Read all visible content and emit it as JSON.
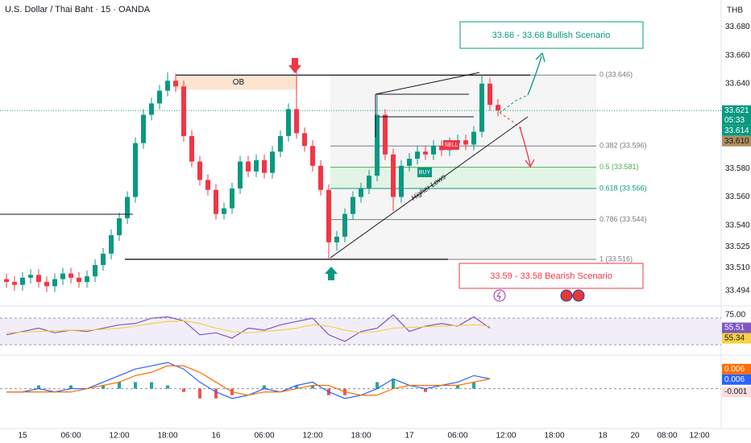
{
  "chart_data": [
    {
      "type": "candlestick",
      "title": "U.S. Dollar / Thai Baht · 15 · OANDA",
      "currency": "THB",
      "x": [
        -2,
        -1,
        0,
        1,
        2,
        3,
        4,
        5,
        6,
        7,
        8,
        9,
        10,
        11,
        12,
        13,
        14,
        15,
        16,
        17,
        18,
        19,
        20,
        21,
        22,
        23,
        24,
        25,
        26,
        27,
        28,
        29,
        30,
        31,
        32,
        33,
        34,
        35,
        36,
        37,
        38,
        39,
        40,
        41,
        42,
        43,
        44,
        45,
        46,
        47,
        48,
        49,
        50,
        51,
        52,
        53,
        54,
        55,
        56,
        57,
        58,
        59
      ],
      "open": [
        33.502,
        33.5,
        33.498,
        33.503,
        33.505,
        33.5,
        33.497,
        33.502,
        33.506,
        33.503,
        33.5,
        33.504,
        33.512,
        33.52,
        33.533,
        33.545,
        33.56,
        33.598,
        33.618,
        33.626,
        33.635,
        33.642,
        33.638,
        33.603,
        33.585,
        33.572,
        33.565,
        33.548,
        33.552,
        33.566,
        33.585,
        33.578,
        33.586,
        33.577,
        33.592,
        33.603,
        33.622,
        33.605,
        33.596,
        33.582,
        33.565,
        33.528,
        33.532,
        33.548,
        33.56,
        33.566,
        33.575,
        33.618,
        33.59,
        33.56,
        33.582,
        33.587,
        33.592,
        33.59,
        33.596,
        33.593,
        33.598,
        33.6,
        33.597,
        33.606,
        33.64,
        33.625
      ],
      "high": [
        33.506,
        33.504,
        33.507,
        33.509,
        33.509,
        33.504,
        33.506,
        33.51,
        33.51,
        33.507,
        33.508,
        33.516,
        33.524,
        33.537,
        33.549,
        33.564,
        33.602,
        33.622,
        33.63,
        33.639,
        33.648,
        33.647,
        33.642,
        33.607,
        33.589,
        33.576,
        33.569,
        33.556,
        33.57,
        33.589,
        33.589,
        33.59,
        33.59,
        33.596,
        33.607,
        33.626,
        33.655,
        33.609,
        33.6,
        33.586,
        33.569,
        33.536,
        33.552,
        33.564,
        33.57,
        33.579,
        33.632,
        33.622,
        33.594,
        33.586,
        33.591,
        33.596,
        33.596,
        33.6,
        33.6,
        33.602,
        33.604,
        33.604,
        33.61,
        33.646,
        33.644,
        33.629
      ],
      "low": [
        33.496,
        33.494,
        33.494,
        33.499,
        33.496,
        33.493,
        33.493,
        33.498,
        33.499,
        33.496,
        33.496,
        33.5,
        33.508,
        33.516,
        33.529,
        33.541,
        33.556,
        33.594,
        33.614,
        33.622,
        33.631,
        33.634,
        33.599,
        33.581,
        33.568,
        33.561,
        33.544,
        33.544,
        33.548,
        33.562,
        33.574,
        33.574,
        33.573,
        33.573,
        33.588,
        33.599,
        33.601,
        33.592,
        33.578,
        33.561,
        33.516,
        33.522,
        33.528,
        33.544,
        33.556,
        33.562,
        33.571,
        33.586,
        33.55,
        33.556,
        33.578,
        33.583,
        33.586,
        33.586,
        33.589,
        33.589,
        33.594,
        33.593,
        33.593,
        33.602,
        33.621,
        33.617
      ],
      "close": [
        33.5,
        33.498,
        33.503,
        33.505,
        33.5,
        33.497,
        33.502,
        33.506,
        33.503,
        33.5,
        33.504,
        33.512,
        33.52,
        33.533,
        33.545,
        33.56,
        33.598,
        33.618,
        33.626,
        33.635,
        33.642,
        33.638,
        33.603,
        33.585,
        33.572,
        33.565,
        33.548,
        33.552,
        33.566,
        33.585,
        33.578,
        33.586,
        33.577,
        33.592,
        33.603,
        33.622,
        33.605,
        33.596,
        33.582,
        33.565,
        33.528,
        33.532,
        33.548,
        33.56,
        33.566,
        33.575,
        33.618,
        33.59,
        33.56,
        33.582,
        33.587,
        33.592,
        33.59,
        33.596,
        33.593,
        33.598,
        33.6,
        33.597,
        33.606,
        33.64,
        33.625,
        33.621
      ],
      "up_color": "#089981",
      "down_color": "#f23645",
      "xlim": [
        -2.8,
        86.7
      ],
      "ylim": [
        33.483,
        33.699
      ],
      "xticks": [
        {
          "value": 0,
          "label": "15"
        },
        {
          "value": 6,
          "label": "06:00"
        },
        {
          "value": 12,
          "label": "12:00"
        },
        {
          "value": 18,
          "label": "18:00"
        },
        {
          "value": 24,
          "label": "16"
        },
        {
          "value": 30,
          "label": "06:00"
        },
        {
          "value": 36,
          "label": "12:00"
        },
        {
          "value": 42,
          "label": "18:00"
        },
        {
          "value": 48,
          "label": "17"
        },
        {
          "value": 54,
          "label": "06:00"
        },
        {
          "value": 60,
          "label": "12:00"
        },
        {
          "value": 66,
          "label": "18:00"
        },
        {
          "value": 72,
          "label": "18"
        },
        {
          "value": 76,
          "label": "20"
        },
        {
          "value": 80,
          "label": "08:00"
        },
        {
          "value": 84,
          "label": "12:00"
        }
      ],
      "yticks": [
        {
          "value": 33.68,
          "label": "33.680"
        },
        {
          "value": 33.66,
          "label": "33.660"
        },
        {
          "value": 33.64,
          "label": "33.640"
        },
        {
          "value": 33.58,
          "label": "33.580"
        },
        {
          "value": 33.56,
          "label": "33.560"
        },
        {
          "value": 33.54,
          "label": "33.540"
        },
        33.525,
        {
          "value": 33.51,
          "label": "33.510"
        },
        33.494
      ],
      "grid": false,
      "price_tags": [
        {
          "value": 33.621,
          "color": "#089981",
          "text_color": "#ffffff",
          "countdown": "05:33"
        },
        {
          "value": 33.614,
          "color": "#089981",
          "text_color": "#ffffff"
        },
        {
          "value": 33.61,
          "label": "33.610",
          "color": "#b08d5b",
          "text_color": "#131722"
        }
      ],
      "fib": [
        {
          "value": 33.646,
          "label": "0 (33.646)",
          "color": "#787b86"
        },
        {
          "value": 33.596,
          "label": "0.382 (33.596)",
          "color": "#787b86"
        },
        {
          "value": 33.581,
          "label": "0.5 (33.581)",
          "color": "#4caf50"
        },
        {
          "value": 33.566,
          "label": "0.618 (33.566)",
          "color": "#089981"
        },
        {
          "value": 33.544,
          "label": "0.786 (33.544)",
          "color": "#787b86"
        },
        {
          "value": 33.516,
          "label": "1 (33.516)",
          "color": "#787b86"
        }
      ],
      "ob_label": "OB",
      "bullish": "33.66 - 33.68 Bullish Scenario",
      "bearish": "33.59 - 33.58 Bearish Scenario",
      "trend_label": "Higher Lows",
      "buy_label": "BUY",
      "sell_label": "SELL"
    },
    {
      "type": "line",
      "x": [
        -2,
        0,
        2,
        4,
        6,
        8,
        10,
        12,
        14,
        16,
        18,
        20,
        22,
        24,
        26,
        28,
        30,
        32,
        34,
        36,
        38,
        40,
        42,
        44,
        46,
        48,
        50,
        52,
        54,
        56,
        58
      ],
      "xlim": [
        -2.8,
        86.7
      ],
      "ylim": [
        15.5,
        85.8
      ],
      "band": [
        30,
        70
      ],
      "yticks": [
        {
          "value": 75,
          "label": "75.00"
        }
      ],
      "series": [
        {
          "color": "#7e57c2",
          "values": [
            45,
            50,
            55,
            48,
            52,
            50,
            55,
            60,
            62,
            70,
            72,
            66,
            45,
            48,
            40,
            55,
            52,
            60,
            65,
            70,
            45,
            35,
            50,
            55,
            75,
            50,
            58,
            62,
            58,
            72,
            55
          ]
        },
        {
          "color": "#f5d142",
          "values": [
            48,
            49,
            50,
            51,
            52,
            52,
            53,
            55,
            58,
            62,
            65,
            66,
            62,
            55,
            50,
            48,
            50,
            52,
            55,
            60,
            58,
            52,
            48,
            50,
            55,
            56,
            57,
            58,
            59,
            60,
            58
          ]
        }
      ],
      "tags": [
        {
          "value": 55.51,
          "color": "#7e57c2",
          "text_color": "#ffffff"
        },
        {
          "value": 55.34,
          "color": "#f5d142",
          "text_color": "#131722"
        }
      ]
    },
    {
      "type": "line",
      "x": [
        -2,
        0,
        2,
        4,
        6,
        8,
        10,
        12,
        14,
        16,
        18,
        20,
        22,
        24,
        26,
        28,
        30,
        32,
        34,
        36,
        38,
        40,
        42,
        44,
        46,
        48,
        50,
        52,
        54,
        56,
        58
      ],
      "xlim": [
        -2.8,
        86.7
      ],
      "ylim": [
        -0.0122,
        0.01
      ],
      "series": [
        {
          "color": "#2962ff",
          "values": [
            -0.001,
            -0.001,
            0,
            -0.001,
            0,
            0,
            0.002,
            0.004,
            0.006,
            0.007,
            0.008,
            0.006,
            0.002,
            -0.001,
            -0.003,
            -0.002,
            0,
            -0.001,
            0.001,
            0.002,
            -0.001,
            -0.003,
            -0.002,
            0,
            0.003,
            0.001,
            0,
            0.001,
            0.002,
            0.004,
            0.003
          ]
        },
        {
          "color": "#ff6d00",
          "values": [
            -0.001,
            -0.001,
            -0.001,
            -0.001,
            -0.001,
            0,
            0.001,
            0.002,
            0.004,
            0.005,
            0.007,
            0.007,
            0.005,
            0.002,
            -0.001,
            -0.002,
            -0.001,
            -0.001,
            0,
            0.001,
            0.001,
            -0.001,
            -0.002,
            -0.002,
            0,
            0.001,
            0.001,
            0.001,
            0.001,
            0.002,
            0.003
          ]
        }
      ],
      "histogram": {
        "up_color": "#26a69a",
        "down_color": "#ef5350",
        "values": [
          0,
          0,
          0.001,
          0,
          0.001,
          0,
          0.001,
          0.002,
          0.002,
          0.002,
          0.001,
          -0.001,
          -0.003,
          -0.003,
          -0.002,
          0,
          0.001,
          0,
          0.001,
          0.001,
          -0.002,
          -0.002,
          0,
          0.002,
          0.003,
          0,
          -0.001,
          0,
          0.001,
          0.002,
          0
        ]
      },
      "tags": [
        {
          "value": 0.006,
          "color": "#ff6d00",
          "text_color": "#ffffff"
        },
        {
          "value": 0.006,
          "color": "#2962ff",
          "text_color": "#ffffff"
        },
        {
          "value": -0.001,
          "color": "#fcdde0",
          "text_color": "#131722"
        }
      ]
    }
  ]
}
